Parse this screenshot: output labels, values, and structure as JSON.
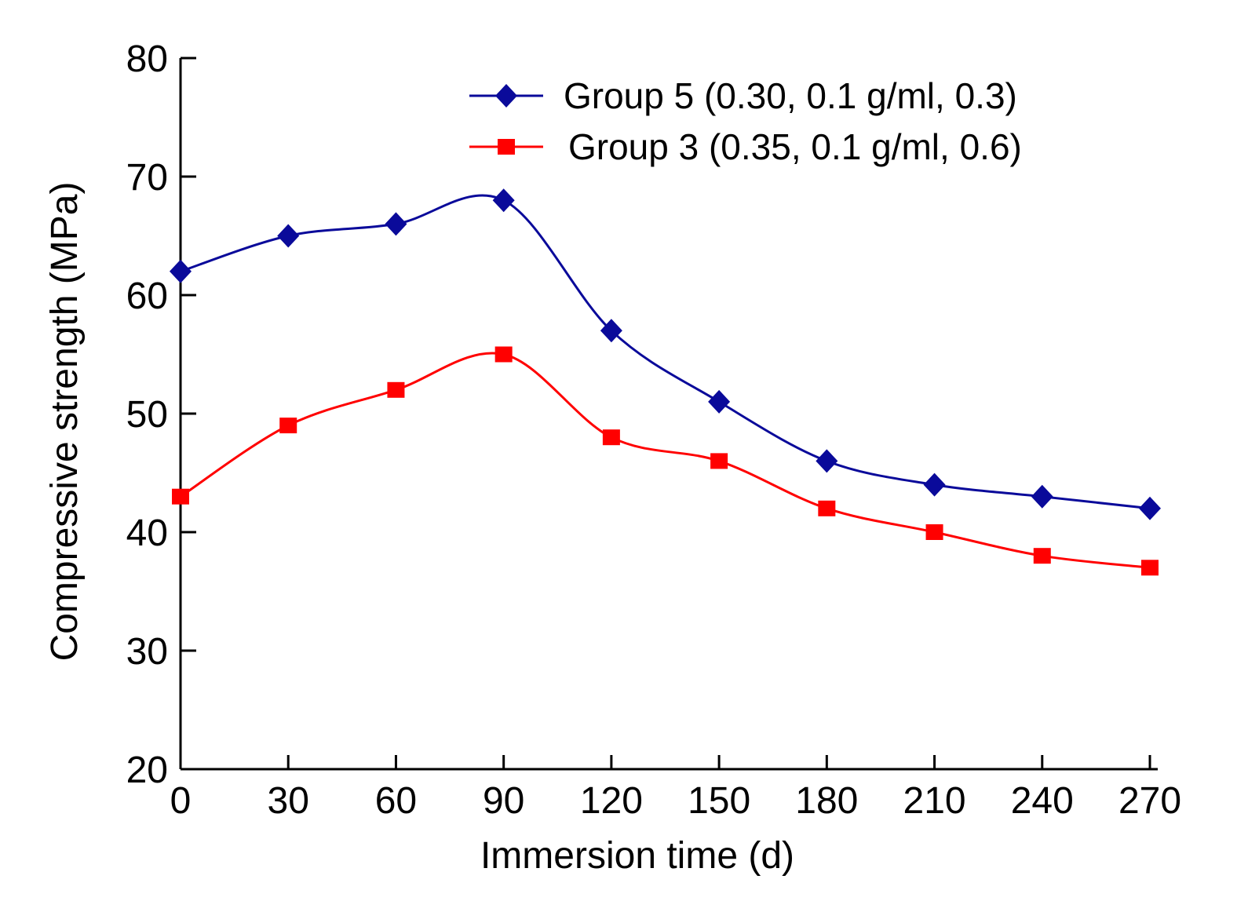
{
  "chart_data": {
    "type": "line",
    "title": "",
    "xlabel": "Immersion time (d)",
    "ylabel": "Compressive strength (MPa)",
    "x": [
      0,
      30,
      60,
      90,
      120,
      150,
      180,
      210,
      240,
      270
    ],
    "xlim": [
      0,
      270
    ],
    "ylim": [
      20,
      80
    ],
    "xticks": [
      "0",
      "30",
      "60",
      "90",
      "120",
      "150",
      "180",
      "210",
      "240",
      "270"
    ],
    "yticks": [
      "20",
      "30",
      "40",
      "50",
      "60",
      "70",
      "80"
    ],
    "grid": false,
    "legend_position": "top-right",
    "series": [
      {
        "name": "Group 5 (0.30, 0.1 g/ml, 0.3)",
        "color": "#0a0a9a",
        "marker": "diamond",
        "values": [
          62,
          65,
          66,
          68,
          57,
          51,
          46,
          44,
          43,
          42
        ]
      },
      {
        "name": "Group 3 (0.35, 0.1 g/ml, 0.6)",
        "color": "#ff0000",
        "marker": "square",
        "values": [
          43,
          49,
          52,
          55,
          48,
          46,
          42,
          40,
          38,
          37
        ]
      }
    ]
  }
}
